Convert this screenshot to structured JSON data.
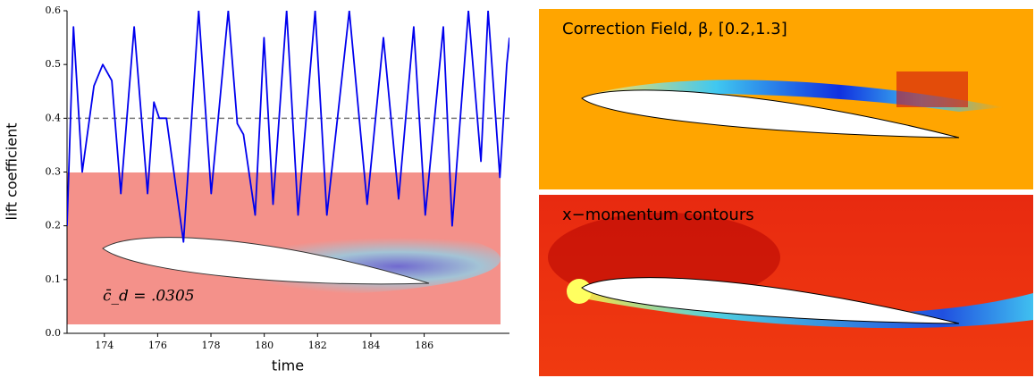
{
  "chart_data": {
    "type": "line",
    "xlabel": "time",
    "ylabel": "lift coefficient",
    "annotation": "c̄_d = .0305",
    "x": [
      172.6,
      172.84,
      173.17,
      173.61,
      173.94,
      174.28,
      174.62,
      175.12,
      175.62,
      175.86,
      176.06,
      176.33,
      176.97,
      177.54,
      178.01,
      178.65,
      178.99,
      179.22,
      179.66,
      179.99,
      180.33,
      180.84,
      181.27,
      181.91,
      182.35,
      183.19,
      183.86,
      184.47,
      185.04,
      185.61,
      186.04,
      186.72,
      187.05,
      187.66,
      188.13,
      188.4,
      188.84,
      189.1,
      189.2
    ],
    "series": [
      {
        "name": "lift coefficient",
        "color": "#0000ee",
        "values": [
          0.2,
          0.57,
          0.3,
          0.46,
          0.5,
          0.47,
          0.26,
          0.57,
          0.26,
          0.43,
          0.4,
          0.4,
          0.17,
          0.6,
          0.26,
          0.6,
          0.39,
          0.37,
          0.22,
          0.55,
          0.24,
          0.6,
          0.22,
          0.6,
          0.22,
          0.6,
          0.24,
          0.55,
          0.25,
          0.57,
          0.22,
          0.57,
          0.2,
          0.6,
          0.32,
          0.6,
          0.29,
          0.5,
          0.55
        ]
      }
    ],
    "hline": {
      "y": 0.4,
      "color": "#777777"
    },
    "xlim": [
      172.6,
      189.2
    ],
    "xticks": [
      174,
      176,
      178,
      180,
      182,
      184,
      186
    ],
    "ylim": [
      0,
      0.6
    ],
    "yticks": [
      {
        "value": 0,
        "label": "0.0"
      },
      0.1,
      0.2,
      0.3,
      0.4,
      0.5,
      0.6
    ]
  },
  "panels": [
    {
      "title": "Correction Field, β, [0.2,1.3]"
    },
    {
      "title": "x−momentum contours"
    }
  ]
}
